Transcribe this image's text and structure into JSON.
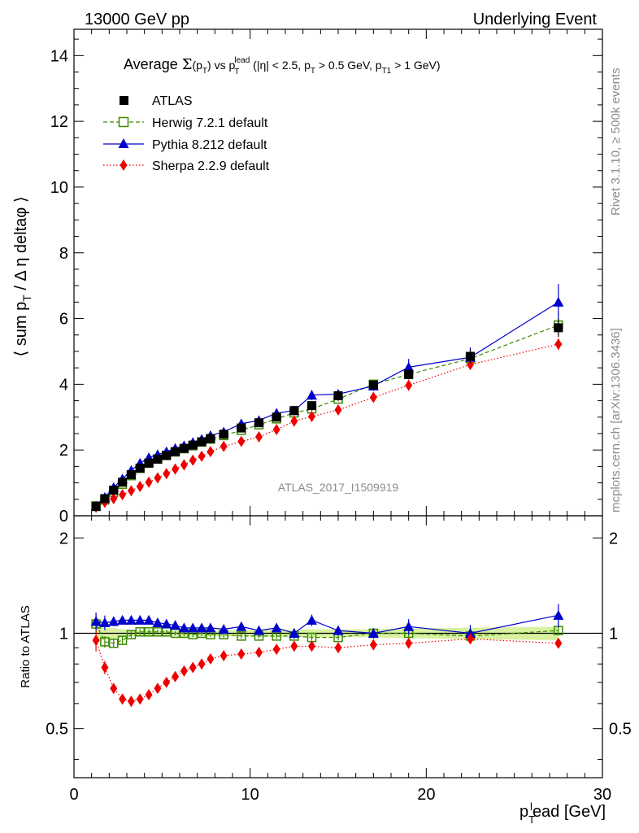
{
  "header": {
    "left": "13000 GeV pp",
    "right": "Underlying Event"
  },
  "side_labels": {
    "rivet": "Rivet 3.1.10, ≥ 500k events",
    "mcplots": "mcplots.cern.ch [arXiv:1306.3436]"
  },
  "watermark": "ATLAS_2017_I1509919",
  "colors": {
    "atlas": "#000000",
    "herwig": "#3a8a00",
    "pythia": "#0000cc",
    "sherpa": "#ee0000",
    "band": "#d8f0a0"
  },
  "chart_data": [
    {
      "type": "line",
      "title": "Average Σ(p_T) vs p_T^lead (|η| < 2.5, p_T > 0.5 GeV, p_T1 > 1 GeV)",
      "title_parts": {
        "a": "Average ",
        "sigma": "Σ",
        "b": "(p",
        "b_sub": "T",
        "c": ") vs p",
        "c_sub": "T",
        "c_sup": "lead",
        "d": " (|η| < 2.5, p",
        "d_sub": "T",
        "e": " > 0.5 GeV, p",
        "e_sub": "T1",
        "f": " > 1 GeV)"
      },
      "ylabel": "⟨ sum p_T / Δ η deltaφ ⟩",
      "ylabel_parts": {
        "a": "⟨ sum p",
        "sub": "T",
        "b": " / Δ η deltaφ ⟩"
      },
      "xlim": [
        0,
        30
      ],
      "ylim": [
        0,
        14.8
      ],
      "yticks": [
        0,
        2,
        4,
        6,
        8,
        10,
        12,
        14
      ],
      "x": [
        1.25,
        1.75,
        2.25,
        2.75,
        3.25,
        3.75,
        4.25,
        4.75,
        5.25,
        5.75,
        6.25,
        6.75,
        7.25,
        7.75,
        8.5,
        9.5,
        10.5,
        11.5,
        12.5,
        13.5,
        15.0,
        17.0,
        19.0,
        22.5,
        27.5
      ],
      "legend_position": "top-left",
      "series": [
        {
          "name": "ATLAS",
          "marker": "square-filled",
          "values": [
            0.28,
            0.52,
            0.78,
            1.02,
            1.25,
            1.45,
            1.6,
            1.72,
            1.83,
            1.95,
            2.05,
            2.15,
            2.25,
            2.35,
            2.48,
            2.67,
            2.83,
            3.0,
            3.2,
            3.35,
            3.65,
            3.98,
            4.3,
            4.85,
            5.72
          ],
          "errors": [
            0.02,
            0.02,
            0.03,
            0.03,
            0.03,
            0.03,
            0.04,
            0.04,
            0.04,
            0.04,
            0.05,
            0.05,
            0.05,
            0.05,
            0.06,
            0.06,
            0.07,
            0.08,
            0.08,
            0.1,
            0.1,
            0.12,
            0.15,
            0.2,
            0.28
          ]
        },
        {
          "name": "Herwig 7.2.1 default",
          "marker": "square-open",
          "line": "dashed",
          "values": [
            0.3,
            0.48,
            0.72,
            0.96,
            1.22,
            1.44,
            1.6,
            1.73,
            1.84,
            1.94,
            2.04,
            2.13,
            2.24,
            2.33,
            2.44,
            2.6,
            2.77,
            2.95,
            3.13,
            3.25,
            3.55,
            4.0,
            4.3,
            4.78,
            5.8
          ],
          "errors": [
            0.02,
            0.02,
            0.02,
            0.03,
            0.03,
            0.03,
            0.03,
            0.03,
            0.03,
            0.03,
            0.04,
            0.04,
            0.04,
            0.04,
            0.05,
            0.05,
            0.05,
            0.06,
            0.06,
            0.07,
            0.07,
            0.09,
            0.11,
            0.14,
            0.2
          ]
        },
        {
          "name": "Pythia 8.212 default",
          "marker": "triangle-filled",
          "line": "solid",
          "values": [
            0.3,
            0.56,
            0.86,
            1.12,
            1.38,
            1.6,
            1.77,
            1.86,
            1.95,
            2.05,
            2.13,
            2.23,
            2.33,
            2.44,
            2.55,
            2.8,
            2.9,
            3.12,
            3.2,
            3.67,
            3.7,
            3.95,
            4.52,
            4.82,
            6.5
          ],
          "errors": [
            0.02,
            0.03,
            0.03,
            0.03,
            0.04,
            0.04,
            0.04,
            0.04,
            0.05,
            0.05,
            0.05,
            0.05,
            0.06,
            0.06,
            0.07,
            0.08,
            0.09,
            0.1,
            0.12,
            0.15,
            0.12,
            0.15,
            0.25,
            0.3,
            0.55
          ]
        },
        {
          "name": "Sherpa 2.2.9 default",
          "marker": "diamond-filled",
          "line": "dotted",
          "values": [
            0.26,
            0.41,
            0.52,
            0.64,
            0.76,
            0.89,
            1.02,
            1.15,
            1.28,
            1.42,
            1.55,
            1.69,
            1.81,
            1.95,
            2.11,
            2.26,
            2.4,
            2.62,
            2.88,
            3.02,
            3.22,
            3.6,
            3.97,
            4.6,
            5.22
          ],
          "errors": [
            0.02,
            0.02,
            0.02,
            0.02,
            0.03,
            0.03,
            0.03,
            0.03,
            0.03,
            0.04,
            0.04,
            0.04,
            0.04,
            0.05,
            0.05,
            0.05,
            0.06,
            0.06,
            0.07,
            0.07,
            0.08,
            0.09,
            0.1,
            0.13,
            0.18
          ]
        }
      ]
    },
    {
      "type": "line",
      "ylabel": "Ratio to ATLAS",
      "xlabel": "p_T^lead [GeV]",
      "xlabel_parts": {
        "a": "p",
        "sub": "T",
        "sup": "l",
        "b": "ead [GeV]"
      },
      "xlim": [
        0,
        30
      ],
      "ylim": [
        0.35,
        2.35
      ],
      "xticks": [
        0,
        10,
        20,
        30
      ],
      "yticks": [
        0.5,
        1,
        2
      ],
      "reference": 1.0,
      "x": [
        1.25,
        1.75,
        2.25,
        2.75,
        3.25,
        3.75,
        4.25,
        4.75,
        5.25,
        5.75,
        6.25,
        6.75,
        7.25,
        7.75,
        8.5,
        9.5,
        10.5,
        11.5,
        12.5,
        13.5,
        15.0,
        17.0,
        19.0,
        22.5,
        27.5
      ],
      "series": [
        {
          "name": "Herwig 7.2.1 default",
          "values": [
            1.07,
            0.94,
            0.93,
            0.95,
            0.99,
            1.01,
            1.01,
            1.01,
            1.01,
            1.0,
            1.0,
            0.99,
            1.0,
            0.99,
            0.99,
            0.98,
            0.98,
            0.98,
            0.98,
            0.97,
            0.97,
            1.0,
            1.0,
            0.98,
            1.02
          ]
        },
        {
          "name": "Pythia 8.212 default",
          "values": [
            1.09,
            1.08,
            1.09,
            1.1,
            1.1,
            1.1,
            1.1,
            1.08,
            1.07,
            1.06,
            1.04,
            1.04,
            1.04,
            1.04,
            1.03,
            1.05,
            1.02,
            1.04,
            1.0,
            1.1,
            1.02,
            1.0,
            1.05,
            1.0,
            1.14
          ]
        },
        {
          "name": "Sherpa 2.2.9 default",
          "values": [
            0.95,
            0.78,
            0.67,
            0.62,
            0.61,
            0.62,
            0.64,
            0.67,
            0.7,
            0.73,
            0.76,
            0.78,
            0.8,
            0.83,
            0.85,
            0.86,
            0.87,
            0.89,
            0.91,
            0.91,
            0.9,
            0.92,
            0.93,
            0.96,
            0.93
          ]
        }
      ]
    }
  ]
}
